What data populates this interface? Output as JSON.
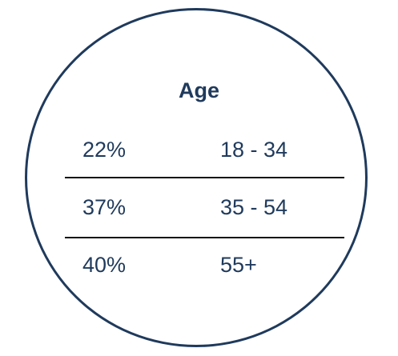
{
  "title": "Age",
  "rows": [
    {
      "percent": "22%",
      "range": "18 - 34"
    },
    {
      "percent": "37%",
      "range": "35 - 54"
    },
    {
      "percent": "40%",
      "range": "55+"
    }
  ],
  "colors": {
    "text": "#1f3a5c",
    "ring": "#1f3a5c",
    "divider": "#111111"
  }
}
